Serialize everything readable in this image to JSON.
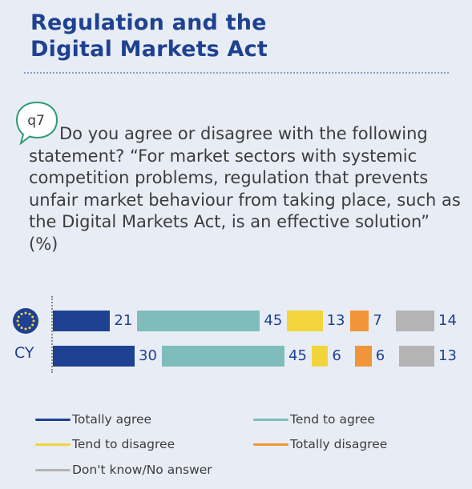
{
  "title_line1": "Regulation and the",
  "title_line2": "Digital Markets Act",
  "question_code": "q7",
  "question_text": "Do you agree or disagree with the following statement? “For market sectors with systemic competition problems, regulation that prevents unfair market behaviour from taking place, such as the Digital Markets Act, is an effective solution” (%)",
  "chart_data": {
    "type": "bar",
    "stacked": true,
    "orientation": "horizontal",
    "categories": [
      "EU",
      "CY"
    ],
    "series": [
      {
        "name": "Totally agree",
        "color": "#1e4191",
        "values": [
          21,
          30
        ]
      },
      {
        "name": "Tend to agree",
        "color": "#7fbcbc",
        "values": [
          45,
          45
        ]
      },
      {
        "name": "Tend to disagree",
        "color": "#f2d53c",
        "values": [
          13,
          6
        ]
      },
      {
        "name": "Totally disagree",
        "color": "#f0953a",
        "values": [
          7,
          6
        ]
      },
      {
        "name": "Don't know/No answer",
        "color": "#b4b4b4",
        "values": [
          14,
          13
        ]
      }
    ],
    "row_labels": [
      "",
      "CY"
    ],
    "legend_position": "bottom"
  },
  "colors": {
    "title": "#1e4191",
    "eu_flag_bg": "#1e4191",
    "eu_flag_stars": "#f2d53c",
    "bubble_stroke": "#2f9a74"
  }
}
